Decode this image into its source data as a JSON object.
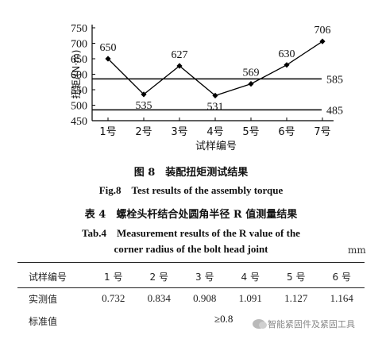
{
  "chart_data": {
    "type": "line",
    "categories": [
      "1号",
      "2号",
      "3号",
      "4号",
      "5号",
      "6号",
      "7号"
    ],
    "series": [
      {
        "values": [
          650,
          535,
          627,
          531,
          569,
          630,
          706
        ]
      }
    ],
    "data_labels": [
      "650",
      "535",
      "627",
      "531",
      "569",
      "630",
      "706"
    ],
    "reference_lines": [
      {
        "value": 585,
        "label": "585"
      },
      {
        "value": 485,
        "label": "485"
      }
    ],
    "ylabel": "扭矩/(N·m)",
    "xlabel": "试样编号",
    "ylim": [
      450,
      750
    ],
    "yticks": [
      "750",
      "700",
      "650",
      "600",
      "550",
      "500",
      "450"
    ],
    "ytick_values": [
      750,
      700,
      650,
      600,
      550,
      500,
      450
    ],
    "grid": false,
    "line_color": "#000000"
  },
  "figure": {
    "caption_zh": "图 8　装配扭矩测试结果",
    "caption_en": "Fig.8　Test results of the assembly torque"
  },
  "table": {
    "title_zh": "表 4　螺栓头杆结合处圆角半径 R 值测量结果",
    "title_en_1": "Tab.4　Measurement results of the R value of the",
    "title_en_2": "corner radius of the bolt head joint",
    "unit": "mm",
    "header": {
      "label": "试样编号",
      "cols": [
        "1 号",
        "2 号",
        "3 号",
        "4 号",
        "5 号",
        "6 号"
      ]
    },
    "row_measured": {
      "label": "实测值",
      "cells": [
        "0.732",
        "0.834",
        "0.908",
        "1.091",
        "1.127",
        "1.164"
      ]
    },
    "row_standard": {
      "label": "标准值",
      "value": "≥0.8"
    }
  },
  "watermark": {
    "text": "智能紧固件及紧固工具",
    "icon": "wechat-icon"
  }
}
